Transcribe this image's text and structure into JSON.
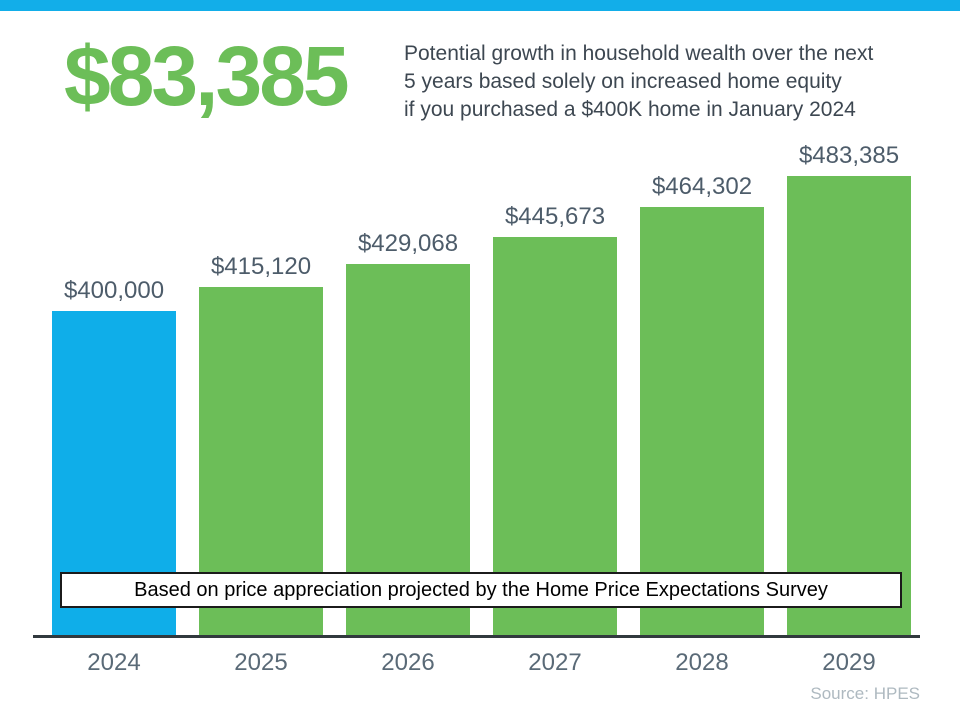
{
  "top_strip": {
    "color": "#12aee9"
  },
  "header": {
    "amount": "$83,385",
    "amount_color": "#6cbe58",
    "description_lines": [
      "Potential growth in household wealth over the next",
      "5 years based solely on increased home equity",
      "if you purchased a $400K home in January 2024"
    ]
  },
  "chart_data": {
    "type": "bar",
    "categories": [
      "2024",
      "2025",
      "2026",
      "2027",
      "2028",
      "2029"
    ],
    "values": [
      400000,
      415120,
      429068,
      445673,
      464302,
      483385
    ],
    "value_labels": [
      "$400,000",
      "$415,120",
      "$429,068",
      "$445,673",
      "$464,302",
      "$483,385"
    ],
    "bar_colors": [
      "#0faee9",
      "#6cbe58",
      "#6cbe58",
      "#6cbe58",
      "#6cbe58",
      "#6cbe58"
    ],
    "title": "",
    "xlabel": "",
    "ylabel": "",
    "ylim": [
      200000,
      483385
    ],
    "grid": false,
    "legend": false,
    "value_label_color": "#4d5c6a",
    "axis_label_color": "#5a6a77",
    "axis_line_color": "#31393e"
  },
  "banner": {
    "text": "Based on price appreciation projected by the Home Price Expectations Survey"
  },
  "source": {
    "text": "Source: HPES"
  }
}
